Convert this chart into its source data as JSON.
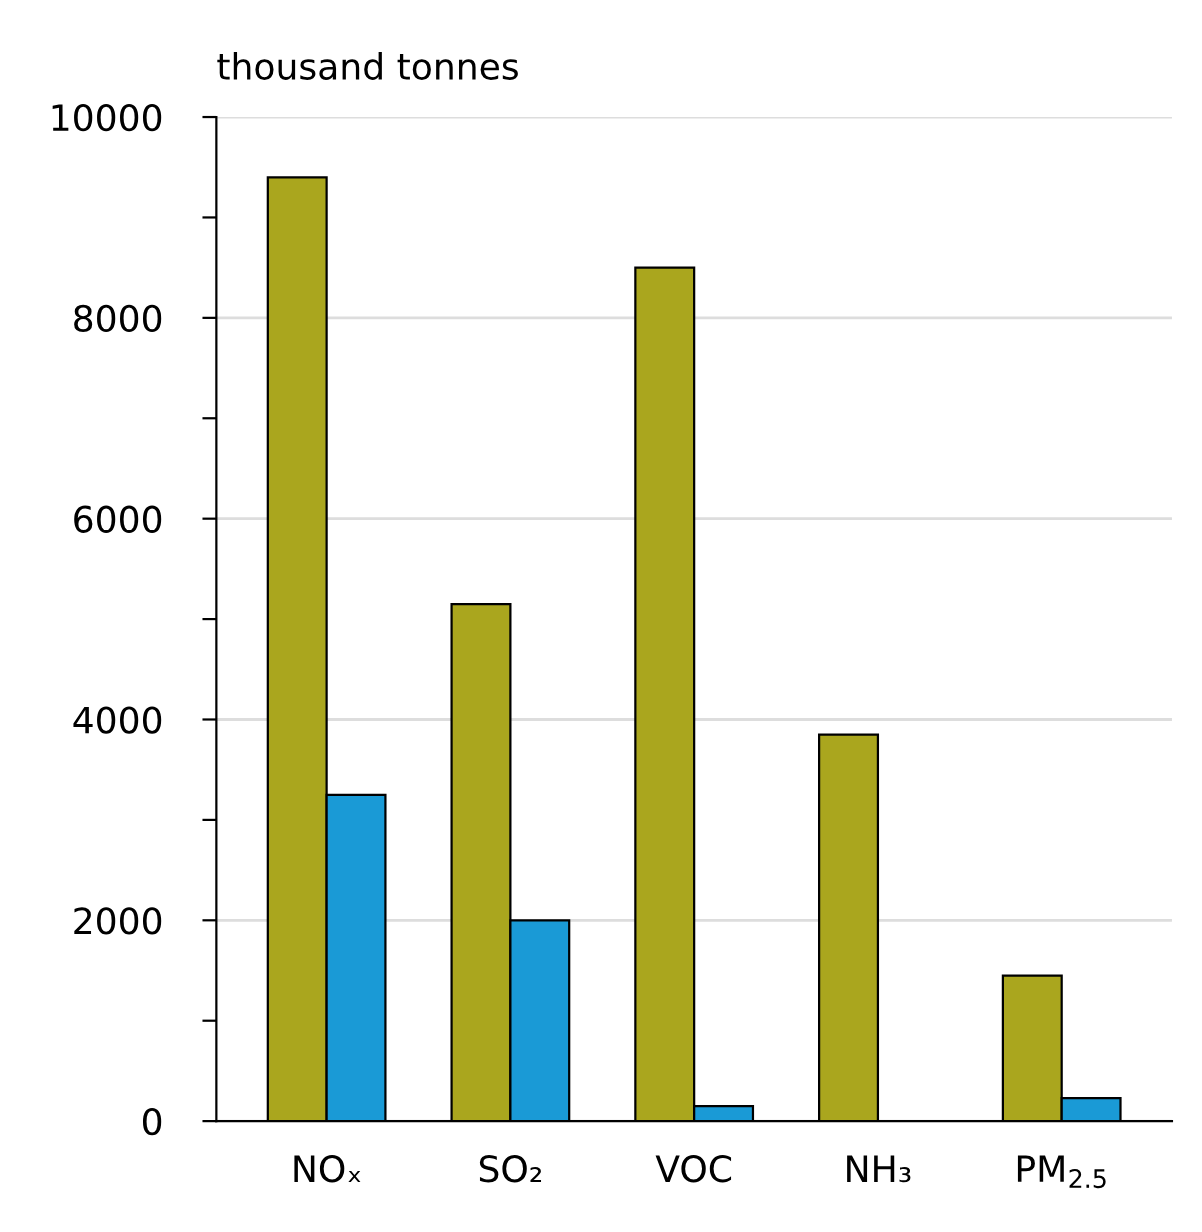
{
  "chart_data": {
    "type": "bar",
    "ylabel": "thousand tonnes",
    "categories": [
      "NOₓ",
      "SO₂",
      "VOC",
      "NH₃",
      "PM$_{2.5}$"
    ],
    "series": [
      {
        "color": "#aaa61e",
        "values": [
          9400,
          5150,
          8500,
          3850,
          1450
        ]
      },
      {
        "color": "#1a9ad6",
        "values": [
          3250,
          2000,
          150,
          null,
          230
        ]
      }
    ],
    "ylim": [
      0,
      10000
    ],
    "yticks": [
      0,
      {
        "value": 1000,
        "label": null
      },
      2000,
      {
        "value": 3000,
        "label": null
      },
      4000,
      {
        "value": 5000,
        "label": null
      },
      6000,
      {
        "value": 7000,
        "label": null
      },
      8000,
      {
        "value": 9000,
        "label": null
      },
      10000
    ],
    "grid": "y",
    "legend": false
  }
}
